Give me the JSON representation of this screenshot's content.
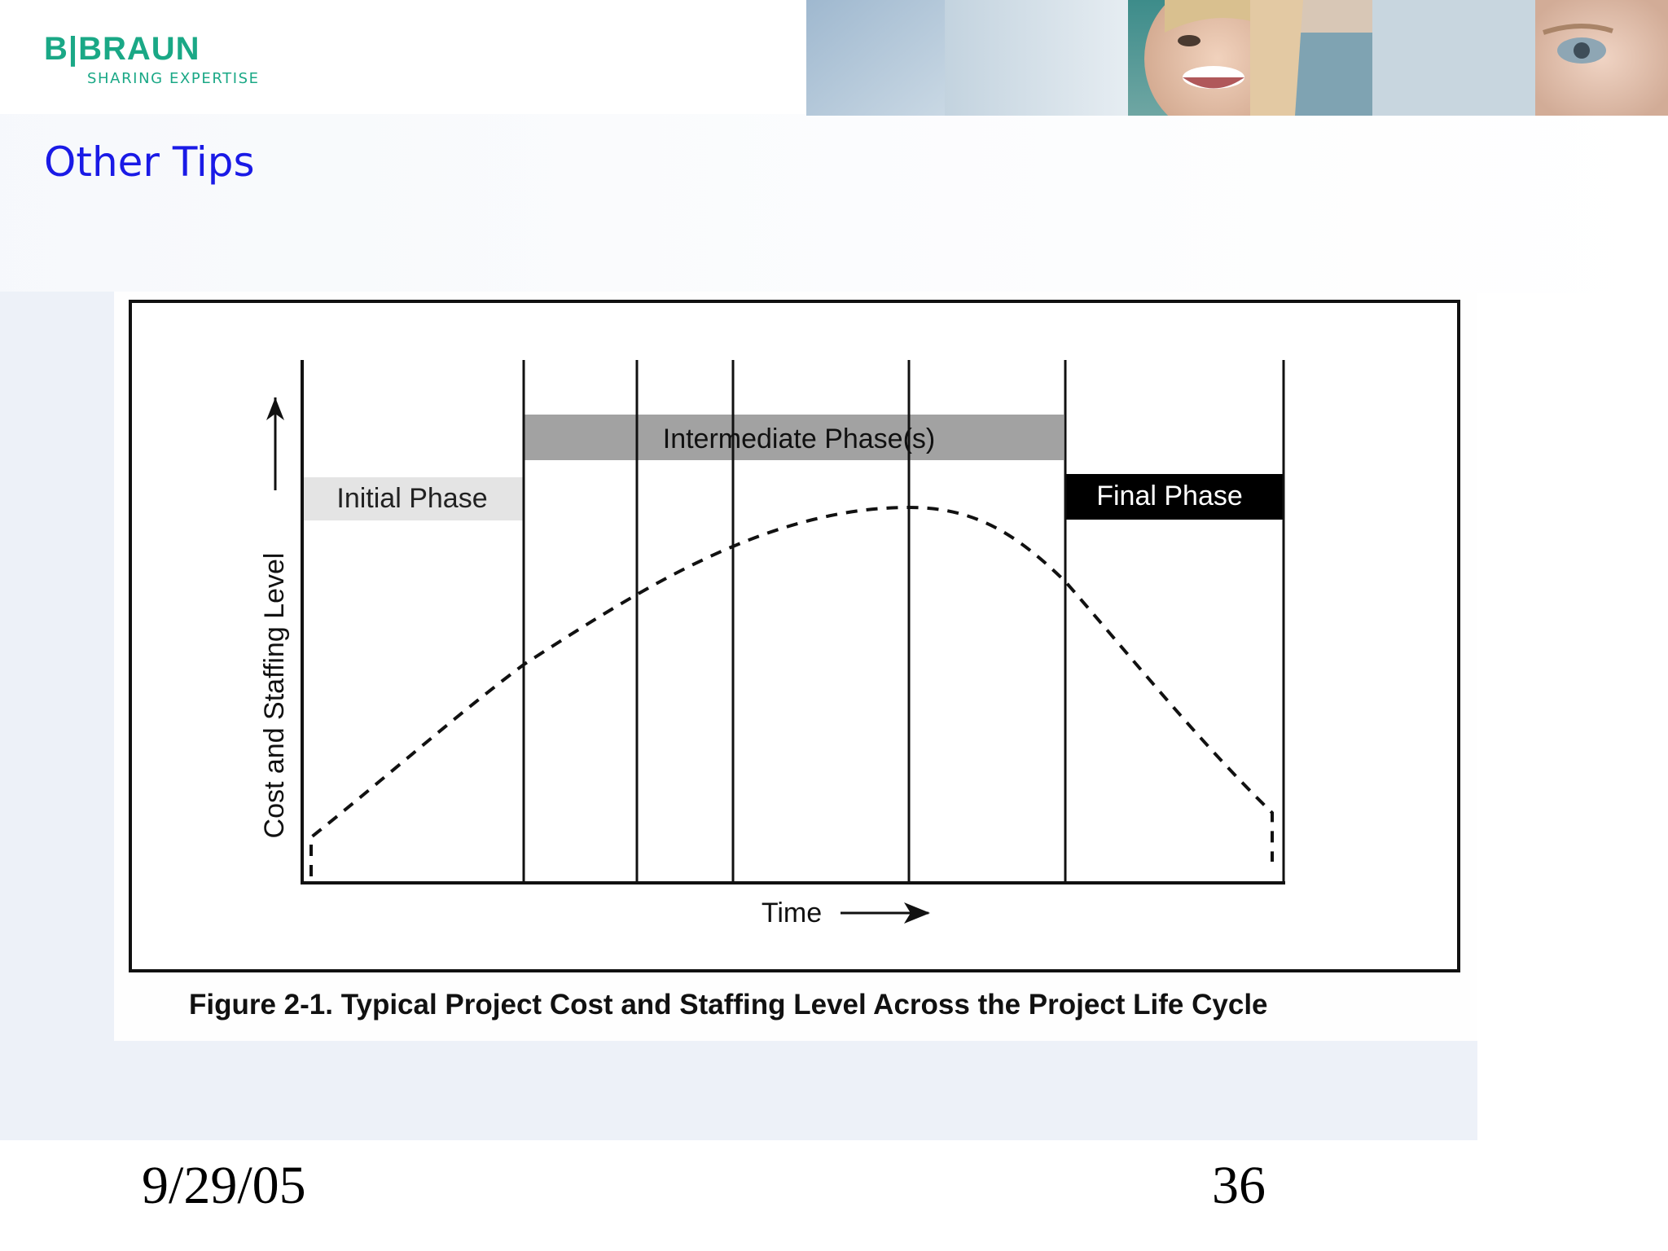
{
  "brand": {
    "name": "B|BRAUN",
    "tagline": "SHARING EXPERTISE"
  },
  "slide": {
    "title": "Other Tips",
    "date": "9/29/05",
    "page_number": "36"
  },
  "figure": {
    "caption": "Figure 2-1. Typical Project Cost and Staffing Level Across the Project Life Cycle",
    "y_axis_label": "Cost and Staffing Level",
    "x_axis_label": "Time",
    "phases": {
      "initial": "Initial Phase",
      "intermediate": "Intermediate Phase(s)",
      "final": "Final Phase"
    },
    "curve_style": "dashed"
  },
  "colors": {
    "brand_green": "#1aa886",
    "title_blue": "#1a1ae6",
    "initial_band": "#e4e4e4",
    "intermediate_band": "#a2a2a2",
    "final_band": "#000000"
  }
}
